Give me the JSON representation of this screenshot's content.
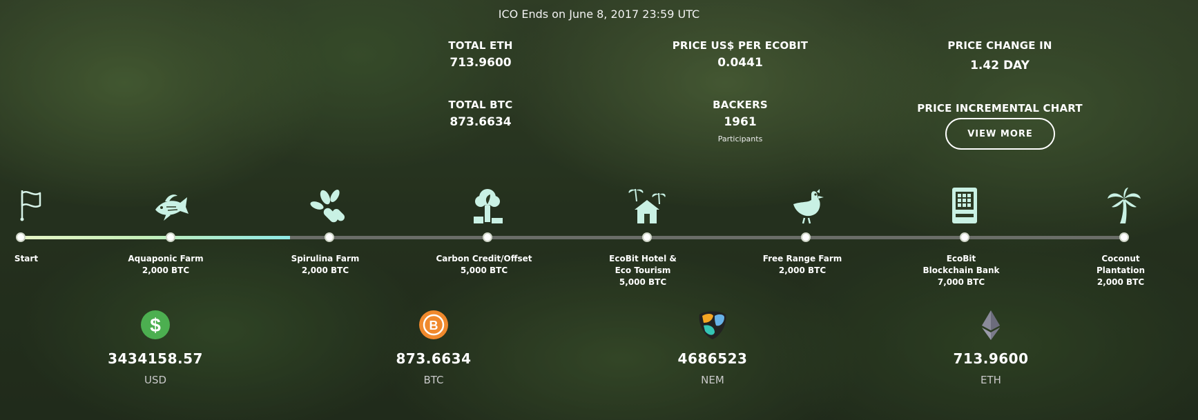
{
  "ico_ends": "ICO Ends on June 8, 2017 23:59 UTC",
  "stats": {
    "total_eth": {
      "label": "TOTAL ETH",
      "value": "713.9600"
    },
    "total_btc": {
      "label": "TOTAL BTC",
      "value": "873.6634"
    },
    "price": {
      "label": "PRICE US$ PER ECOBIT",
      "value": "0.0441"
    },
    "backers": {
      "label": "BACKERS",
      "value": "1961",
      "sub": "Participants"
    },
    "price_change": {
      "label": "PRICE CHANGE IN",
      "value": "1.42 DAY"
    },
    "incremental": {
      "label": "PRICE INCREMENTAL CHART",
      "button": "VIEW MORE"
    }
  },
  "timeline": {
    "progress_fraction": 0.244,
    "milestones": [
      {
        "icon": "flag-icon",
        "lines": [
          "Start"
        ]
      },
      {
        "icon": "fish-icon",
        "lines": [
          "Aquaponic Farm",
          "2,000 BTC"
        ]
      },
      {
        "icon": "spirulina-leaves-icon",
        "lines": [
          "Spirulina Farm",
          "2,000 BTC"
        ]
      },
      {
        "icon": "factory-tree-icon",
        "lines": [
          "Carbon Credit/Offset",
          "5,000 BTC"
        ]
      },
      {
        "icon": "hotel-palm-icon",
        "lines": [
          "EcoBit Hotel &",
          "Eco Tourism",
          "5,000 BTC"
        ]
      },
      {
        "icon": "chicken-icon",
        "lines": [
          "Free Range Farm",
          "2,000 BTC"
        ]
      },
      {
        "icon": "atm-machine-icon",
        "lines": [
          "EcoBit",
          "Blockchain Bank",
          "7,000 BTC"
        ]
      },
      {
        "icon": "palm-tree-icon",
        "lines": [
          "Coconut",
          "Plantation",
          "2,000 BTC"
        ]
      }
    ]
  },
  "currencies": [
    {
      "icon": "dollar-icon",
      "amount": "3434158.57",
      "code": "USD",
      "color": "#4caf50"
    },
    {
      "icon": "bitcoin-icon",
      "amount": "873.6634",
      "code": "BTC",
      "color": "#f0892d"
    },
    {
      "icon": "nem-icon",
      "amount": "4686523",
      "code": "NEM",
      "color": "#34c5b5"
    },
    {
      "icon": "ethereum-icon",
      "amount": "713.9600",
      "code": "ETH",
      "color": "#8a8a9a"
    }
  ],
  "colors": {
    "accent_gradient": [
      "#e6f4c6",
      "#8fe9e6"
    ],
    "icon_tint": "#c9f1e4"
  }
}
